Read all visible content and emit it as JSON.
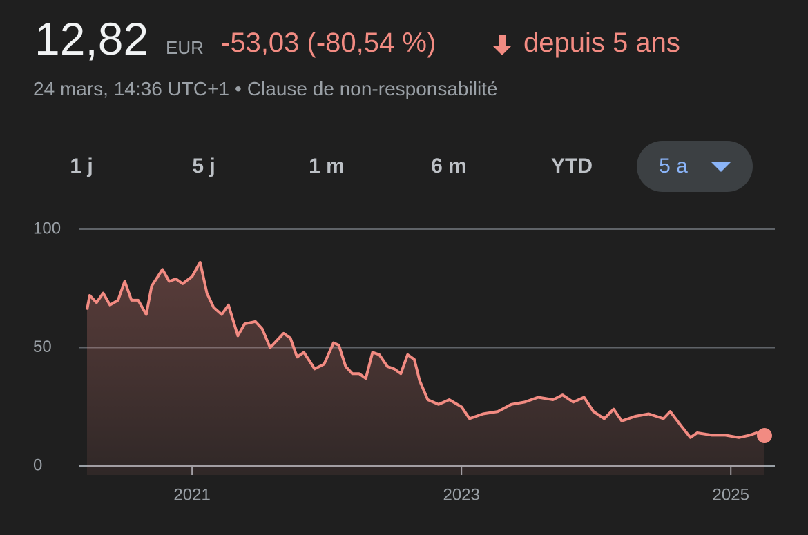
{
  "header": {
    "price": "12,82",
    "currency": "EUR",
    "change": "-53,03 (-80,54 %)",
    "period": "depuis 5 ans",
    "timestamp": "24 mars, 14:36 UTC+1",
    "separator": "•",
    "disclaimer": "Clause de non-responsabilité"
  },
  "ranges": [
    "1 j",
    "5 j",
    "1 m",
    "6 m",
    "YTD",
    "5 a"
  ],
  "chart_data": {
    "type": "line",
    "x": [
      2020.22,
      2020.24,
      2020.29,
      2020.34,
      2020.39,
      2020.45,
      2020.5,
      2020.55,
      2020.6,
      2020.66,
      2020.7,
      2020.78,
      2020.83,
      2020.88,
      2020.93,
      2021.0,
      2021.06,
      2021.11,
      2021.16,
      2021.22,
      2021.27,
      2021.34,
      2021.39,
      2021.47,
      2021.52,
      2021.58,
      2021.68,
      2021.73,
      2021.78,
      2021.83,
      2021.91,
      2021.98,
      2022.05,
      2022.09,
      2022.14,
      2022.19,
      2022.24,
      2022.29,
      2022.34,
      2022.39,
      2022.45,
      2022.5,
      2022.55,
      2022.6,
      2022.65,
      2022.69,
      2022.75,
      2022.83,
      2022.91,
      2023.0,
      2023.06,
      2023.16,
      2023.27,
      2023.37,
      2023.47,
      2023.57,
      2023.68,
      2023.75,
      2023.83,
      2023.91,
      2023.98,
      2024.06,
      2024.13,
      2024.19,
      2024.29,
      2024.39,
      2024.5,
      2024.55,
      2024.63,
      2024.7,
      2024.75,
      2024.86,
      2024.96,
      2025.06,
      2025.14,
      2025.19,
      2025.25
    ],
    "values": [
      66,
      72,
      69,
      73,
      68,
      70,
      78,
      70,
      70,
      64,
      76,
      83,
      78,
      79,
      77,
      80,
      86,
      73,
      67,
      64,
      68,
      55,
      60,
      61,
      58,
      50,
      56,
      54,
      46,
      48,
      41,
      43,
      52,
      51,
      42,
      39,
      39,
      37,
      48,
      47,
      42,
      41,
      39,
      47,
      45,
      36,
      28,
      26,
      28,
      25,
      20,
      22,
      23,
      26,
      27,
      29,
      28,
      30,
      27,
      29,
      23,
      20,
      24,
      19,
      21,
      22,
      20,
      23,
      17,
      12,
      14,
      13,
      13,
      12,
      13,
      14,
      12.82
    ],
    "color": "#f28b82",
    "xlim": [
      2020.22,
      2025.25
    ],
    "xticks": [
      2021,
      2023,
      2025
    ],
    "ylim": [
      0,
      100
    ],
    "yticks": [
      0,
      50,
      100
    ],
    "grid": true
  }
}
